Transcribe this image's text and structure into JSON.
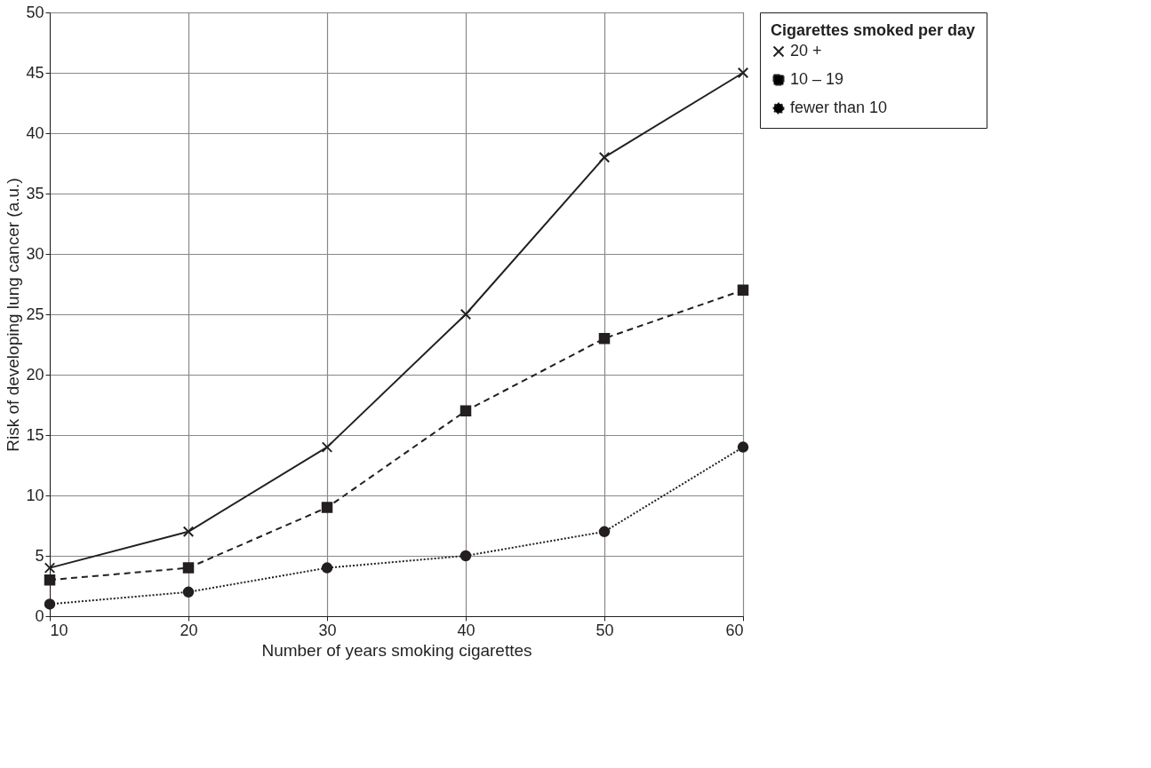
{
  "chart_data": {
    "type": "line",
    "xlabel": "Number of years smoking cigarettes",
    "ylabel": "Risk of developing lung cancer (a.u.)",
    "legend_title": "Cigarettes smoked per day",
    "x": [
      10,
      20,
      30,
      40,
      50,
      60
    ],
    "xlim": [
      10,
      60
    ],
    "xticks": [
      10,
      20,
      30,
      40,
      50,
      60
    ],
    "ylim": [
      0,
      50
    ],
    "yticks": [
      0,
      5,
      10,
      15,
      20,
      25,
      30,
      35,
      40,
      45,
      50
    ],
    "grid": true,
    "legend": "top right",
    "series": [
      {
        "name": "20 +",
        "color": "#231f20",
        "marker": "cross",
        "line_style": "solid",
        "values": [
          4,
          7,
          14,
          25,
          38,
          45
        ]
      },
      {
        "name": "10 – 19",
        "color": "#231f20",
        "marker": "square",
        "line_style": "dashed",
        "values": [
          3,
          4,
          9,
          17,
          23,
          27
        ]
      },
      {
        "name": "fewer than 10",
        "color": "#231f20",
        "marker": "circle",
        "line_style": "dotted",
        "values": [
          1,
          2,
          4,
          5,
          7,
          14
        ]
      }
    ]
  }
}
